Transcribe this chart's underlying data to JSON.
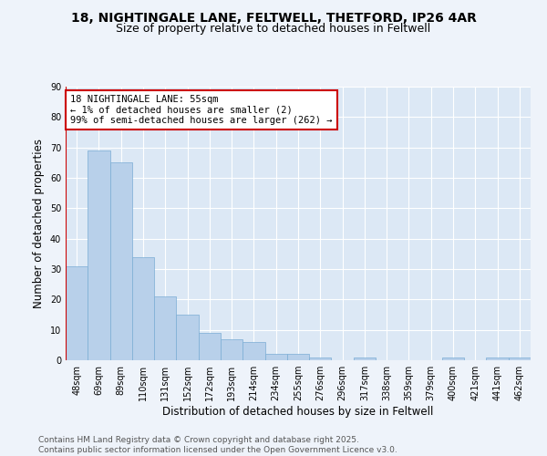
{
  "title_line1": "18, NIGHTINGALE LANE, FELTWELL, THETFORD, IP26 4AR",
  "title_line2": "Size of property relative to detached houses in Feltwell",
  "xlabel": "Distribution of detached houses by size in Feltwell",
  "ylabel": "Number of detached properties",
  "categories": [
    "48sqm",
    "69sqm",
    "89sqm",
    "110sqm",
    "131sqm",
    "152sqm",
    "172sqm",
    "193sqm",
    "214sqm",
    "234sqm",
    "255sqm",
    "276sqm",
    "296sqm",
    "317sqm",
    "338sqm",
    "359sqm",
    "379sqm",
    "400sqm",
    "421sqm",
    "441sqm",
    "462sqm"
  ],
  "values": [
    31,
    69,
    65,
    34,
    21,
    15,
    9,
    7,
    6,
    2,
    2,
    1,
    0,
    1,
    0,
    0,
    0,
    1,
    0,
    1,
    1
  ],
  "bar_color": "#b8d0ea",
  "bar_edge_color": "#7aadd4",
  "highlight_color": "#cc0000",
  "annotation_text": "18 NIGHTINGALE LANE: 55sqm\n← 1% of detached houses are smaller (2)\n99% of semi-detached houses are larger (262) →",
  "annotation_box_color": "#ffffff",
  "annotation_box_edge_color": "#cc0000",
  "plot_bg_color": "#dce8f5",
  "fig_bg_color": "#eef3fa",
  "ylim": [
    0,
    90
  ],
  "yticks": [
    0,
    10,
    20,
    30,
    40,
    50,
    60,
    70,
    80,
    90
  ],
  "footer_text": "Contains HM Land Registry data © Crown copyright and database right 2025.\nContains public sector information licensed under the Open Government Licence v3.0.",
  "grid_color": "#ffffff",
  "title_fontsize": 10,
  "subtitle_fontsize": 9,
  "axis_label_fontsize": 8.5,
  "tick_fontsize": 7,
  "annotation_fontsize": 7.5,
  "footer_fontsize": 6.5
}
